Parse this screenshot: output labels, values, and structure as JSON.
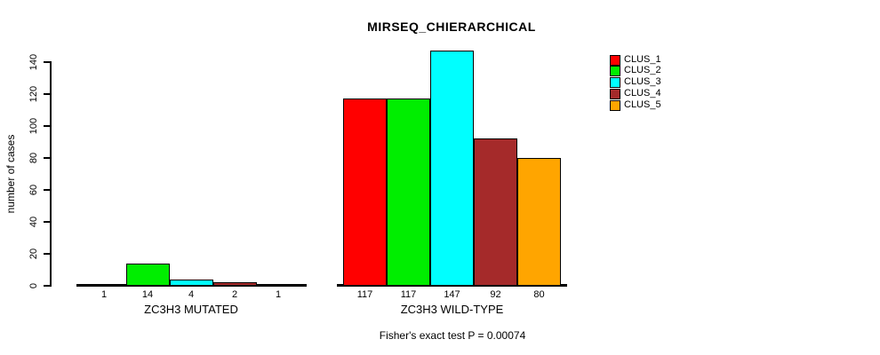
{
  "chart_data": {
    "type": "bar",
    "title": "MIRSEQ_CHIERARCHICAL",
    "ylabel": "number of cases",
    "ylim": [
      0,
      147
    ],
    "yticks": [
      0,
      20,
      40,
      60,
      80,
      100,
      120,
      140
    ],
    "grid": false,
    "legend_position": "top-right",
    "categories": [
      "ZC3H3 MUTATED",
      "ZC3H3 WILD-TYPE"
    ],
    "series": [
      {
        "name": "CLUS_1",
        "color": "#FF0000",
        "values": [
          1,
          117
        ]
      },
      {
        "name": "CLUS_2",
        "color": "#00EE00",
        "values": [
          14,
          117
        ]
      },
      {
        "name": "CLUS_3",
        "color": "#00FFFF",
        "values": [
          4,
          147
        ]
      },
      {
        "name": "CLUS_4",
        "color": "#A52A2A",
        "values": [
          2,
          92
        ]
      },
      {
        "name": "CLUS_5",
        "color": "#FFA500",
        "values": [
          1,
          80
        ]
      }
    ],
    "bar_value_labels": [
      [
        1,
        14,
        4,
        2,
        1
      ],
      [
        117,
        117,
        147,
        92,
        80
      ]
    ],
    "annotation": "Fisher's exact test P = 0.00074"
  }
}
